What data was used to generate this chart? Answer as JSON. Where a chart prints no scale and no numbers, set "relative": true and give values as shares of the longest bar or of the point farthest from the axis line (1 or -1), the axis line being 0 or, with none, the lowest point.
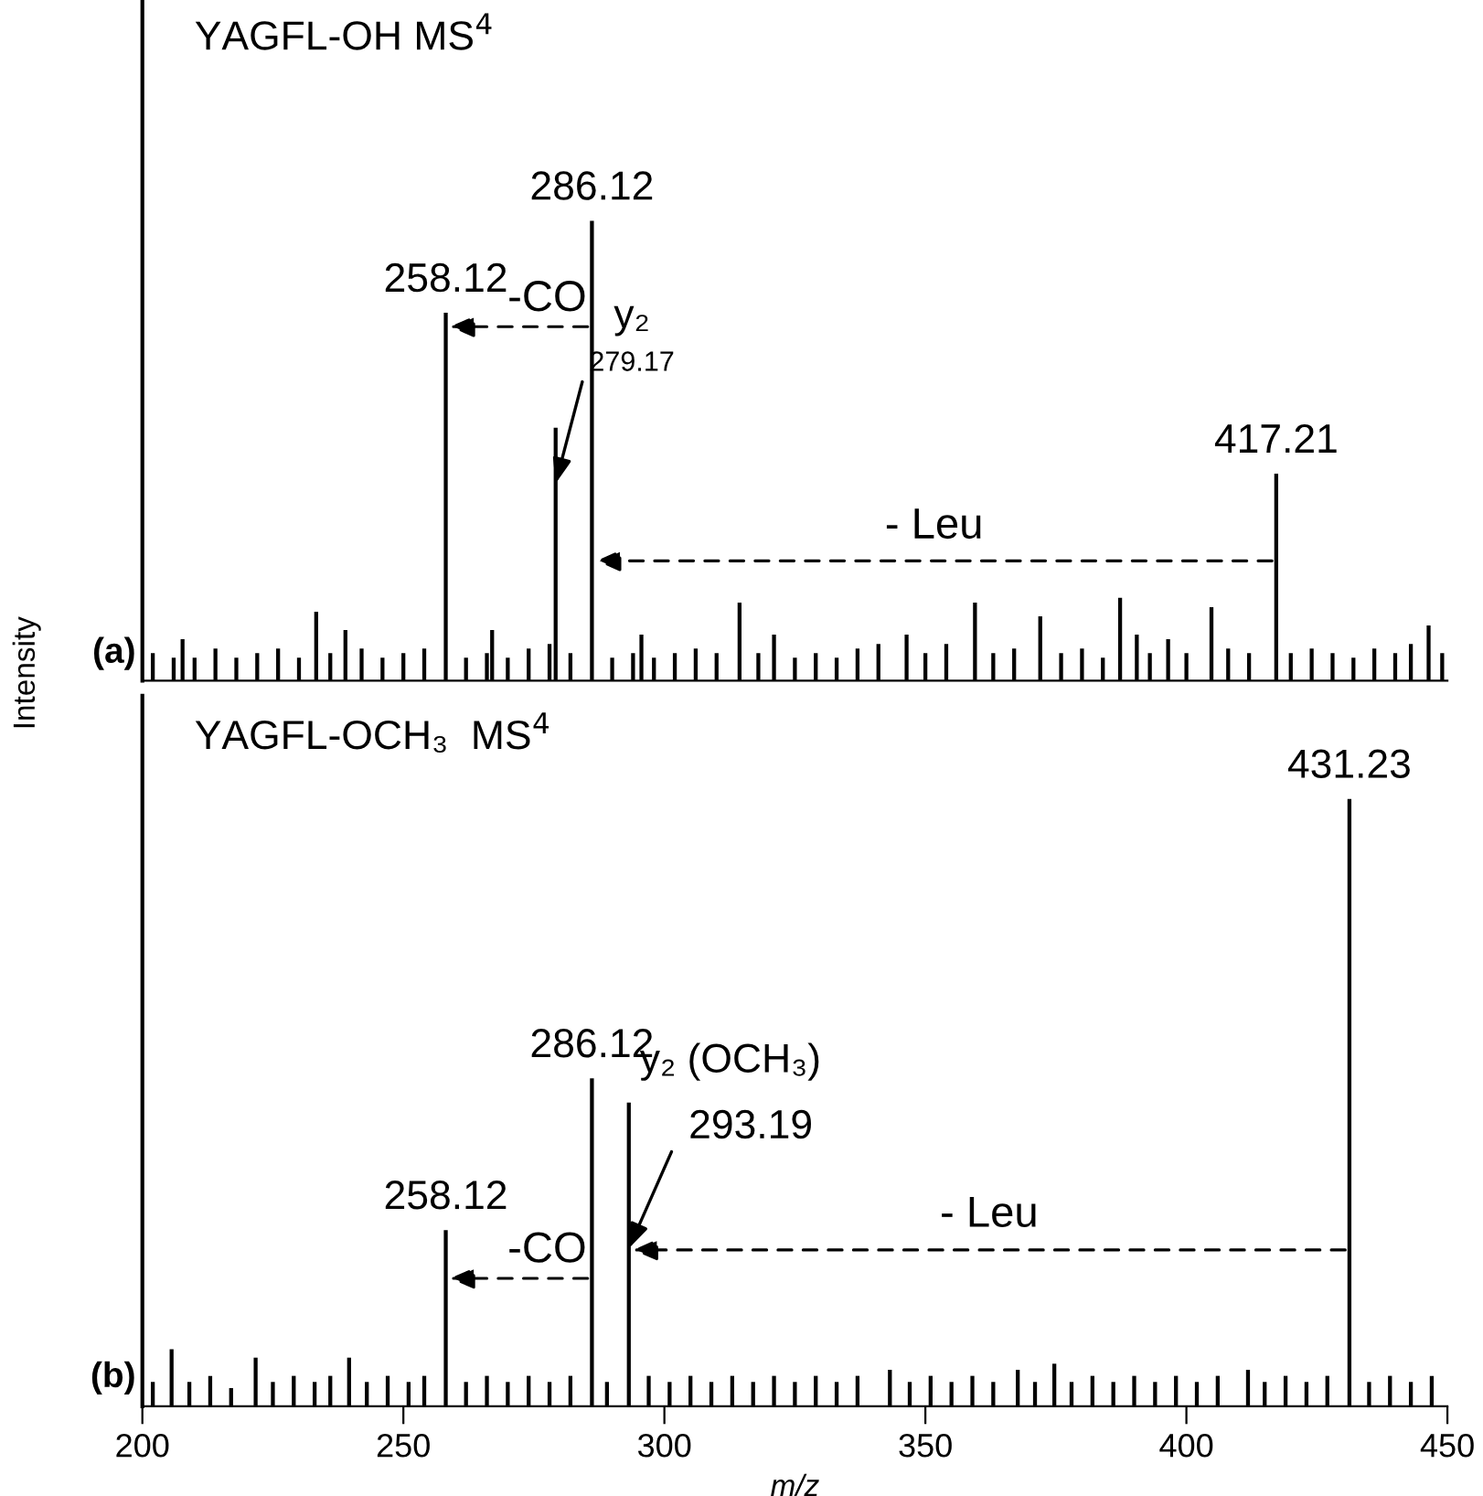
{
  "chart_data": [
    {
      "type": "bar",
      "title": "YAGFL-OH MS$^{4}$",
      "ylabel": "Intensity",
      "relative": true,
      "xlim": [
        200,
        450
      ],
      "tick_labels": false,
      "color": "#000000",
      "x": [
        202,
        206,
        207.7,
        210,
        214,
        218,
        222,
        226,
        230,
        233.3,
        236,
        238.9,
        242,
        246,
        250,
        254,
        258.12,
        262,
        266,
        267,
        270,
        274,
        278,
        279.17,
        282,
        286.12,
        290,
        294,
        295.6,
        298,
        302,
        306,
        310,
        314.4,
        318,
        321,
        325,
        329,
        333,
        337,
        341,
        346.4,
        350,
        354,
        359.5,
        363,
        367,
        372,
        376,
        380,
        384,
        387.3,
        390.5,
        393,
        396.5,
        400,
        404.8,
        408,
        412,
        417.21,
        420,
        424,
        428,
        432,
        436,
        440,
        443,
        446.4,
        449
      ],
      "values": [
        0.06,
        0.05,
        0.09,
        0.05,
        0.07,
        0.05,
        0.06,
        0.07,
        0.05,
        0.15,
        0.06,
        0.11,
        0.07,
        0.05,
        0.06,
        0.07,
        0.8,
        0.05,
        0.06,
        0.11,
        0.05,
        0.07,
        0.08,
        0.55,
        0.06,
        1.0,
        0.05,
        0.06,
        0.1,
        0.05,
        0.06,
        0.07,
        0.06,
        0.17,
        0.06,
        0.1,
        0.05,
        0.06,
        0.05,
        0.07,
        0.08,
        0.1,
        0.06,
        0.08,
        0.17,
        0.06,
        0.07,
        0.14,
        0.06,
        0.07,
        0.05,
        0.18,
        0.1,
        0.06,
        0.09,
        0.06,
        0.16,
        0.07,
        0.06,
        0.45,
        0.06,
        0.07,
        0.06,
        0.05,
        0.07,
        0.06,
        0.08,
        0.12,
        0.06
      ],
      "annotations": [
        "(a)",
        {
          "text": "258.12",
          "x": 258.12,
          "y": 0.8
        },
        {
          "text": "286.12",
          "x": 286.12,
          "y": 1.0
        },
        {
          "text": "417.21",
          "x": 417.21,
          "y": 0.45
        },
        {
          "text": "279.17",
          "x": 279.17,
          "y": 0.55
        },
        {
          "text": "y₂",
          "x": 279.17,
          "y": 0.55
        },
        "-CO",
        "- Leu"
      ]
    },
    {
      "type": "bar",
      "title": "YAGFL-OCH₃  MS$^{4}$",
      "xlabel": "m/z",
      "relative": true,
      "xlim": [
        200,
        450
      ],
      "xticks": [
        200,
        250,
        300,
        350,
        400,
        450
      ],
      "tick_labels": "x",
      "color": "#000000",
      "x": [
        202,
        205.6,
        209,
        213,
        217,
        221.7,
        225,
        229,
        233,
        236,
        239.6,
        243,
        247,
        251,
        254,
        258.12,
        262,
        266,
        270,
        274,
        278,
        282,
        286.12,
        289,
        293.19,
        297,
        301,
        305,
        309,
        313,
        317,
        321,
        325,
        329,
        333,
        337,
        343.2,
        347,
        351,
        355,
        359,
        363,
        367.7,
        371,
        374.7,
        378,
        382,
        386,
        390,
        394,
        398,
        402,
        406,
        411.8,
        415,
        419,
        423,
        427,
        431.23,
        435,
        439,
        443,
        447
      ],
      "values": [
        0.04,
        0.094,
        0.04,
        0.05,
        0.03,
        0.08,
        0.04,
        0.05,
        0.04,
        0.05,
        0.08,
        0.04,
        0.05,
        0.04,
        0.05,
        0.29,
        0.04,
        0.05,
        0.04,
        0.05,
        0.04,
        0.05,
        0.54,
        0.04,
        0.5,
        0.05,
        0.04,
        0.05,
        0.04,
        0.05,
        0.04,
        0.05,
        0.04,
        0.05,
        0.04,
        0.05,
        0.06,
        0.04,
        0.05,
        0.04,
        0.05,
        0.04,
        0.06,
        0.04,
        0.07,
        0.04,
        0.05,
        0.04,
        0.05,
        0.04,
        0.05,
        0.04,
        0.05,
        0.06,
        0.04,
        0.05,
        0.04,
        0.05,
        1.0,
        0.04,
        0.05,
        0.04,
        0.05
      ],
      "annotations": [
        "(b)",
        {
          "text": "431.23",
          "x": 431.23,
          "y": 1.0
        },
        {
          "text": "286.12",
          "x": 286.12,
          "y": 0.54
        },
        {
          "text": "258.12",
          "x": 258.12,
          "y": 0.29
        },
        {
          "text": "293.19",
          "x": 293.19,
          "y": 0.5
        },
        {
          "text": "y₂ (OCH₃)",
          "x": 293.19,
          "y": 0.5
        },
        "-CO",
        "- Leu"
      ]
    }
  ]
}
